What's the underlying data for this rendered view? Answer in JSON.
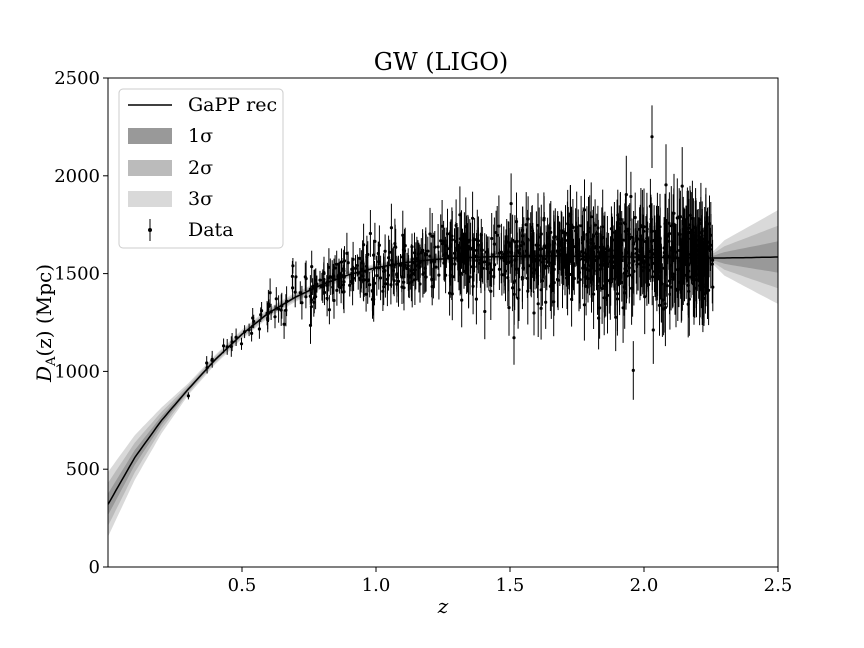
{
  "chart_data": {
    "type": "line",
    "title": "GW (LIGO)",
    "xlabel": "z",
    "ylabel_main": "D",
    "ylabel_sub": "A",
    "ylabel_rest": "(z) (Mpc)",
    "xlim": [
      0.0,
      2.5
    ],
    "ylim": [
      0,
      2500
    ],
    "x_ticks": [
      "0.5",
      "1.0",
      "1.5",
      "2.0",
      "2.5"
    ],
    "x_tick_values": [
      0.5,
      1.0,
      1.5,
      2.0,
      2.5
    ],
    "y_ticks": [
      "0",
      "500",
      "1000",
      "1500",
      "2000",
      "2500"
    ],
    "y_tick_values": [
      0,
      500,
      1000,
      1500,
      2000,
      2500
    ],
    "grid": false,
    "legend_position": "top-left",
    "legend": [
      {
        "label": "GaPP rec",
        "kind": "line"
      },
      {
        "label": "1σ",
        "kind": "band1"
      },
      {
        "label": "2σ",
        "kind": "band2"
      },
      {
        "label": "3σ",
        "kind": "band3"
      },
      {
        "label": "Data",
        "kind": "errorbar"
      }
    ],
    "colors": {
      "line": "#000000",
      "band1": "#999999",
      "band2": "#bbbbbb",
      "band3": "#d9d9d9",
      "data": "#000000"
    },
    "reconstruction": {
      "z": [
        0.0,
        0.1,
        0.2,
        0.3,
        0.4,
        0.5,
        0.6,
        0.7,
        0.8,
        0.9,
        1.0,
        1.1,
        1.2,
        1.3,
        1.4,
        1.5,
        1.6,
        1.7,
        1.8,
        1.9,
        2.0,
        2.1,
        2.2,
        2.26,
        2.3,
        2.4,
        2.5
      ],
      "mean": [
        320,
        560,
        750,
        910,
        1060,
        1190,
        1300,
        1380,
        1445,
        1495,
        1530,
        1555,
        1570,
        1580,
        1585,
        1588,
        1590,
        1590,
        1588,
        1586,
        1584,
        1582,
        1580,
        1580,
        1580,
        1582,
        1585
      ],
      "sigma": [
        55,
        38,
        22,
        10,
        8,
        8,
        8,
        8,
        7,
        7,
        7,
        7,
        7,
        7,
        7,
        7,
        8,
        8,
        8,
        9,
        10,
        11,
        12,
        12,
        30,
        55,
        80
      ]
    },
    "data_points": {
      "n_points": 1000,
      "z_range": [
        0.28,
        2.26
      ],
      "error_fraction": 0.09,
      "highlighted": [
        {
          "z": 2.03,
          "y": 2200,
          "err": 160
        },
        {
          "z": 1.96,
          "y": 1005,
          "err": 150
        },
        {
          "z": 0.69,
          "y": 1540,
          "err": 40
        },
        {
          "z": 0.3,
          "y": 875,
          "err": 18
        }
      ]
    }
  }
}
